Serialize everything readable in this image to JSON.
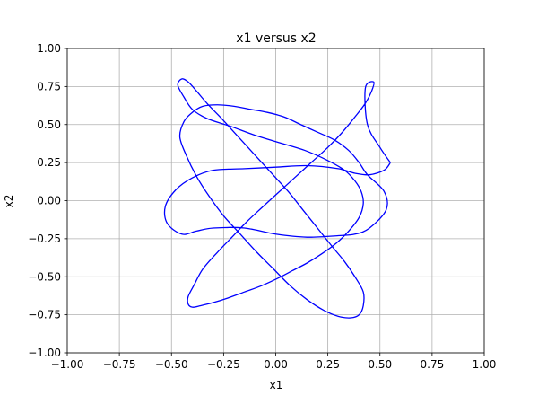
{
  "chart_data": {
    "type": "line",
    "title": "x1 versus x2",
    "xlabel": "x1",
    "ylabel": "x2",
    "xlim": [
      -1.0,
      1.0
    ],
    "ylim": [
      -1.0,
      1.0
    ],
    "xticks": [
      -1.0,
      -0.75,
      -0.5,
      -0.25,
      0.0,
      0.25,
      0.5,
      0.75,
      1.0
    ],
    "yticks": [
      -1.0,
      -0.75,
      -0.5,
      -0.25,
      0.0,
      0.25,
      0.5,
      0.75,
      1.0
    ],
    "xtick_labels": [
      "−1.00",
      "−0.75",
      "−0.50",
      "−0.25",
      "0.00",
      "0.25",
      "0.50",
      "0.75",
      "1.00"
    ],
    "ytick_labels": [
      "−1.00",
      "−0.75",
      "−0.50",
      "−0.25",
      "0.00",
      "0.25",
      "0.50",
      "0.75",
      "1.00"
    ],
    "grid": true,
    "series": [
      {
        "color": "#0000ff",
        "x": [
          0.55,
          0.52,
          0.45,
          0.38,
          0.3,
          0.15,
          0.0,
          -0.15,
          -0.3,
          -0.4,
          -0.48,
          -0.53,
          -0.52,
          -0.45,
          -0.38,
          -0.3,
          -0.15,
          0.0,
          0.15,
          0.3,
          0.38,
          0.45,
          0.53,
          0.52,
          0.44,
          0.4,
          0.35,
          0.28,
          0.2,
          0.12,
          0.04,
          -0.04,
          -0.12,
          -0.2,
          -0.28,
          -0.35,
          -0.4,
          -0.44,
          -0.46,
          -0.43,
          -0.38,
          -0.32,
          -0.25,
          -0.17,
          -0.09,
          -0.01,
          0.07,
          0.15,
          0.23,
          0.3,
          0.36,
          0.4,
          0.42,
          0.42,
          0.38,
          0.33,
          0.27,
          0.2,
          0.13,
          0.06,
          -0.02,
          -0.1,
          -0.18,
          -0.26,
          -0.33,
          -0.38,
          -0.42,
          -0.45,
          -0.47,
          -0.44,
          -0.4,
          -0.33,
          -0.22,
          -0.1,
          0.02,
          0.14,
          0.24,
          0.33,
          0.38,
          0.41,
          0.42,
          0.4,
          0.35,
          0.29,
          0.22,
          0.15,
          0.08,
          0.01,
          -0.07,
          -0.15,
          -0.23,
          -0.3,
          -0.36,
          -0.4,
          -0.42,
          -0.42,
          -0.39,
          -0.35,
          -0.28,
          -0.21,
          -0.14,
          -0.07,
          0.01,
          0.09,
          0.17,
          0.25,
          0.32,
          0.38,
          0.43,
          0.46,
          0.47,
          0.43,
          0.44,
          0.5,
          0.55
        ],
        "y": [
          0.25,
          0.2,
          0.17,
          0.18,
          0.21,
          0.23,
          0.22,
          0.21,
          0.2,
          0.15,
          0.07,
          -0.04,
          -0.15,
          -0.22,
          -0.2,
          -0.18,
          -0.18,
          -0.22,
          -0.24,
          -0.23,
          -0.22,
          -0.18,
          -0.06,
          0.06,
          0.17,
          0.25,
          0.33,
          0.4,
          0.45,
          0.5,
          0.55,
          0.58,
          0.6,
          0.62,
          0.63,
          0.62,
          0.58,
          0.52,
          0.42,
          0.3,
          0.16,
          0.03,
          -0.1,
          -0.22,
          -0.34,
          -0.45,
          -0.56,
          -0.65,
          -0.72,
          -0.76,
          -0.77,
          -0.75,
          -0.69,
          -0.6,
          -0.5,
          -0.4,
          -0.3,
          -0.18,
          -0.06,
          0.06,
          0.18,
          0.3,
          0.42,
          0.54,
          0.64,
          0.72,
          0.78,
          0.8,
          0.76,
          0.68,
          0.6,
          0.54,
          0.49,
          0.43,
          0.38,
          0.33,
          0.27,
          0.2,
          0.13,
          0.06,
          -0.02,
          -0.11,
          -0.2,
          -0.28,
          -0.35,
          -0.41,
          -0.46,
          -0.51,
          -0.56,
          -0.6,
          -0.64,
          -0.67,
          -0.69,
          -0.7,
          -0.68,
          -0.63,
          -0.55,
          -0.45,
          -0.34,
          -0.24,
          -0.14,
          -0.05,
          0.05,
          0.15,
          0.25,
          0.35,
          0.45,
          0.55,
          0.64,
          0.72,
          0.78,
          0.74,
          0.5,
          0.35,
          0.25
        ]
      }
    ]
  }
}
